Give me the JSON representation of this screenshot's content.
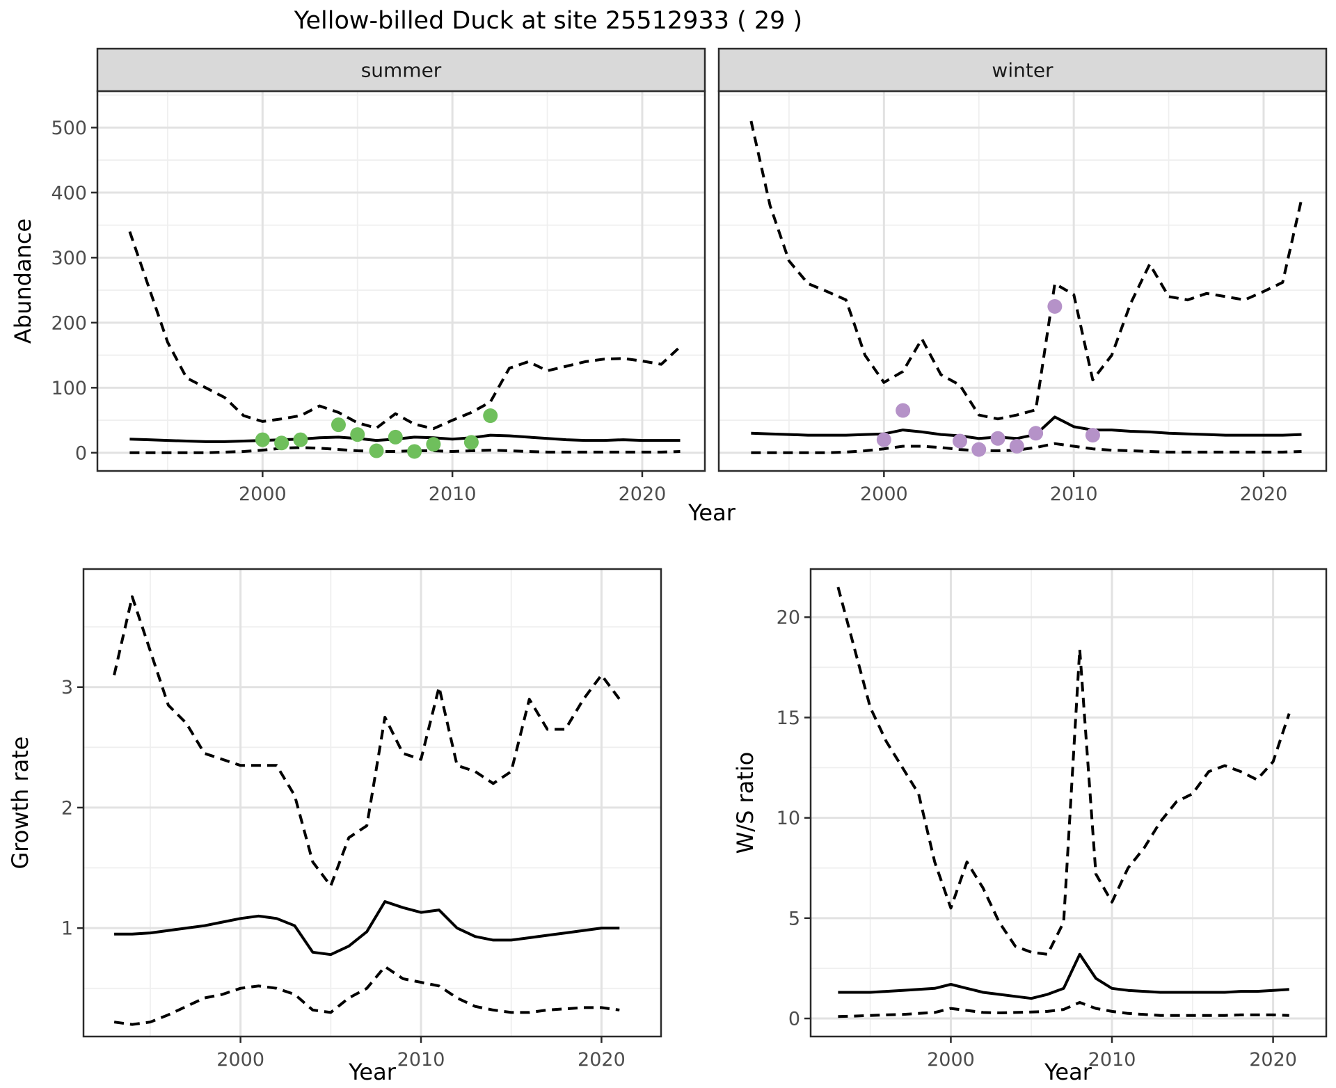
{
  "title": "Yellow-billed Duck at site 25512933 ( 29 )",
  "colors": {
    "summer_point": "#6fbf5c",
    "winter_point": "#b592c8",
    "line": "#000000",
    "strip_bg": "#d9d9d9",
    "panel_border": "#2b2b2b",
    "grid_major": "#e2e2e2",
    "grid_minor": "#efefef",
    "tick_text": "#4d4d4d",
    "panel_bg": "#ffffff"
  },
  "top_row": {
    "ylabel": "Abundance",
    "xlabel": "Year",
    "facets": [
      "summer",
      "winter"
    ]
  },
  "chart_data": [
    {
      "id": "summer",
      "type": "line",
      "facet_label": "summer",
      "ylabel": "Abundance",
      "xlabel": "Year",
      "x": [
        1993,
        1994,
        1995,
        1996,
        1997,
        1998,
        1999,
        2000,
        2001,
        2002,
        2003,
        2004,
        2005,
        2006,
        2007,
        2008,
        2009,
        2010,
        2011,
        2012,
        2013,
        2014,
        2015,
        2016,
        2017,
        2018,
        2019,
        2020,
        2021,
        2022
      ],
      "series": [
        {
          "name": "upper_ci",
          "style": "dashed",
          "values": [
            340,
            255,
            170,
            115,
            100,
            85,
            57,
            48,
            52,
            57,
            72,
            62,
            46,
            38,
            60,
            44,
            37,
            50,
            62,
            78,
            130,
            140,
            126,
            133,
            140,
            144,
            145,
            141,
            136,
            163
          ]
        },
        {
          "name": "median",
          "style": "solid",
          "values": [
            21,
            20,
            19,
            18,
            17,
            17,
            18,
            19,
            20,
            21,
            23,
            24,
            22,
            19,
            21,
            24,
            23,
            21,
            23,
            27,
            26,
            24,
            22,
            20,
            19,
            19,
            20,
            19,
            19,
            19
          ]
        },
        {
          "name": "lower_ci",
          "style": "dashed",
          "values": [
            0,
            0,
            0,
            0,
            0,
            1,
            2,
            4,
            7,
            8,
            7,
            5,
            3,
            2,
            2,
            3,
            3,
            2,
            3,
            4,
            3,
            2,
            1,
            1,
            1,
            1,
            1,
            1,
            1,
            2
          ]
        }
      ],
      "points": {
        "name": "observed-counts",
        "color_key": "summer_point",
        "data": [
          [
            2000,
            20
          ],
          [
            2001,
            15
          ],
          [
            2002,
            20
          ],
          [
            2004,
            43
          ],
          [
            2005,
            28
          ],
          [
            2006,
            3
          ],
          [
            2007,
            24
          ],
          [
            2008,
            2
          ],
          [
            2009,
            13
          ],
          [
            2011,
            16
          ],
          [
            2012,
            57
          ]
        ]
      },
      "xticks": [
        2000,
        2010,
        2020
      ],
      "yticks": [
        0,
        100,
        200,
        300,
        400,
        500
      ],
      "xminor": [
        1995,
        2005,
        2015
      ],
      "yminor": [
        50,
        150,
        250,
        350,
        450,
        550
      ],
      "xlim": [
        1991.3,
        2023.3
      ],
      "ylim": [
        -28,
        556
      ]
    },
    {
      "id": "winter",
      "type": "line",
      "facet_label": "winter",
      "xlabel": "Year",
      "x": [
        1993,
        1994,
        1995,
        1996,
        1997,
        1998,
        1999,
        2000,
        2001,
        2002,
        2003,
        2004,
        2005,
        2006,
        2007,
        2008,
        2009,
        2010,
        2011,
        2012,
        2013,
        2014,
        2015,
        2016,
        2017,
        2018,
        2019,
        2020,
        2021,
        2022
      ],
      "series": [
        {
          "name": "upper_ci",
          "style": "dashed",
          "values": [
            510,
            380,
            295,
            260,
            248,
            235,
            150,
            108,
            125,
            175,
            120,
            104,
            58,
            52,
            58,
            66,
            260,
            243,
            112,
            150,
            230,
            290,
            240,
            235,
            245,
            240,
            235,
            248,
            262,
            390
          ]
        },
        {
          "name": "median",
          "style": "solid",
          "values": [
            30,
            29,
            28,
            27,
            27,
            27,
            28,
            29,
            35,
            32,
            28,
            26,
            22,
            24,
            22,
            28,
            55,
            40,
            35,
            35,
            33,
            32,
            30,
            29,
            28,
            27,
            27,
            27,
            27,
            28
          ]
        },
        {
          "name": "lower_ci",
          "style": "dashed",
          "values": [
            0,
            0,
            0,
            0,
            0,
            1,
            3,
            6,
            10,
            10,
            8,
            5,
            3,
            3,
            4,
            8,
            14,
            10,
            6,
            4,
            3,
            2,
            1,
            1,
            1,
            1,
            1,
            1,
            1,
            2
          ]
        }
      ],
      "points": {
        "name": "observed-counts",
        "color_key": "winter_point",
        "data": [
          [
            2000,
            20
          ],
          [
            2001,
            65
          ],
          [
            2004,
            18
          ],
          [
            2005,
            5
          ],
          [
            2006,
            22
          ],
          [
            2007,
            10
          ],
          [
            2008,
            30
          ],
          [
            2009,
            225
          ],
          [
            2011,
            27
          ]
        ]
      },
      "xticks": [
        2000,
        2010,
        2020
      ],
      "yticks": [
        0,
        100,
        200,
        300,
        400,
        500
      ],
      "xminor": [
        1995,
        2005,
        2015
      ],
      "yminor": [
        50,
        150,
        250,
        350,
        450,
        550
      ],
      "xlim": [
        1991.3,
        2023.3
      ],
      "ylim": [
        -28,
        556
      ]
    },
    {
      "id": "growth",
      "type": "line",
      "ylabel": "Growth rate",
      "xlabel": "Year",
      "x": [
        1993,
        1994,
        1995,
        1996,
        1997,
        1998,
        1999,
        2000,
        2001,
        2002,
        2003,
        2004,
        2005,
        2006,
        2007,
        2008,
        2009,
        2010,
        2011,
        2012,
        2013,
        2014,
        2015,
        2016,
        2017,
        2018,
        2019,
        2020,
        2021
      ],
      "series": [
        {
          "name": "upper_ci",
          "style": "dashed",
          "values": [
            3.1,
            3.75,
            3.3,
            2.85,
            2.7,
            2.45,
            2.4,
            2.35,
            2.35,
            2.35,
            2.1,
            1.55,
            1.35,
            1.75,
            1.85,
            2.75,
            2.45,
            2.4,
            3.0,
            2.35,
            2.3,
            2.2,
            2.3,
            2.9,
            2.65,
            2.65,
            2.9,
            3.1,
            2.9
          ]
        },
        {
          "name": "median",
          "style": "solid",
          "values": [
            0.95,
            0.95,
            0.96,
            0.98,
            1.0,
            1.02,
            1.05,
            1.08,
            1.1,
            1.08,
            1.02,
            0.8,
            0.78,
            0.85,
            0.97,
            1.22,
            1.17,
            1.13,
            1.15,
            1.0,
            0.93,
            0.9,
            0.9,
            0.92,
            0.94,
            0.96,
            0.98,
            1.0,
            1.0
          ]
        },
        {
          "name": "lower_ci",
          "style": "dashed",
          "values": [
            0.22,
            0.2,
            0.22,
            0.28,
            0.35,
            0.42,
            0.45,
            0.5,
            0.52,
            0.5,
            0.45,
            0.32,
            0.3,
            0.42,
            0.5,
            0.68,
            0.58,
            0.55,
            0.52,
            0.42,
            0.35,
            0.32,
            0.3,
            0.3,
            0.32,
            0.33,
            0.34,
            0.34,
            0.32
          ]
        }
      ],
      "xticks": [
        2000,
        2010,
        2020
      ],
      "yticks": [
        1,
        2,
        3
      ],
      "xminor": [
        1995,
        2005,
        2015
      ],
      "yminor": [
        0.5,
        1.5,
        2.5,
        3.5
      ],
      "xlim": [
        1991.3,
        2023.3
      ],
      "ylim": [
        0.1,
        3.98
      ]
    },
    {
      "id": "ws",
      "type": "line",
      "ylabel": "W/S ratio",
      "xlabel": "Year",
      "x": [
        1993,
        1994,
        1995,
        1996,
        1997,
        1998,
        1999,
        2000,
        2001,
        2002,
        2003,
        2004,
        2005,
        2006,
        2007,
        2008,
        2009,
        2010,
        2011,
        2012,
        2013,
        2014,
        2015,
        2016,
        2017,
        2018,
        2019,
        2020,
        2021
      ],
      "series": [
        {
          "name": "upper_ci",
          "style": "dashed",
          "values": [
            21.5,
            18.5,
            15.5,
            13.8,
            12.5,
            11.2,
            7.8,
            5.5,
            7.8,
            6.5,
            4.8,
            3.6,
            3.3,
            3.2,
            4.8,
            18.4,
            7.2,
            5.8,
            7.5,
            8.5,
            9.8,
            10.8,
            11.2,
            12.3,
            12.6,
            12.3,
            11.9,
            12.8,
            15.2
          ]
        },
        {
          "name": "median",
          "style": "solid",
          "values": [
            1.3,
            1.3,
            1.3,
            1.35,
            1.4,
            1.45,
            1.5,
            1.7,
            1.5,
            1.3,
            1.2,
            1.1,
            1.0,
            1.2,
            1.5,
            3.2,
            2.0,
            1.5,
            1.4,
            1.35,
            1.3,
            1.3,
            1.3,
            1.3,
            1.3,
            1.35,
            1.35,
            1.4,
            1.45
          ]
        },
        {
          "name": "lower_ci",
          "style": "dashed",
          "values": [
            0.1,
            0.12,
            0.15,
            0.18,
            0.2,
            0.25,
            0.3,
            0.5,
            0.4,
            0.3,
            0.28,
            0.3,
            0.32,
            0.35,
            0.45,
            0.8,
            0.5,
            0.35,
            0.25,
            0.2,
            0.15,
            0.15,
            0.15,
            0.15,
            0.15,
            0.18,
            0.18,
            0.18,
            0.15
          ]
        }
      ],
      "xticks": [
        2000,
        2010,
        2020
      ],
      "yticks": [
        0,
        5,
        10,
        15,
        20
      ],
      "xminor": [
        1995,
        2005,
        2015
      ],
      "yminor": [
        2.5,
        7.5,
        12.5,
        17.5
      ],
      "xlim": [
        1991.3,
        2023.3
      ],
      "ylim": [
        -0.9,
        22.4
      ]
    }
  ]
}
